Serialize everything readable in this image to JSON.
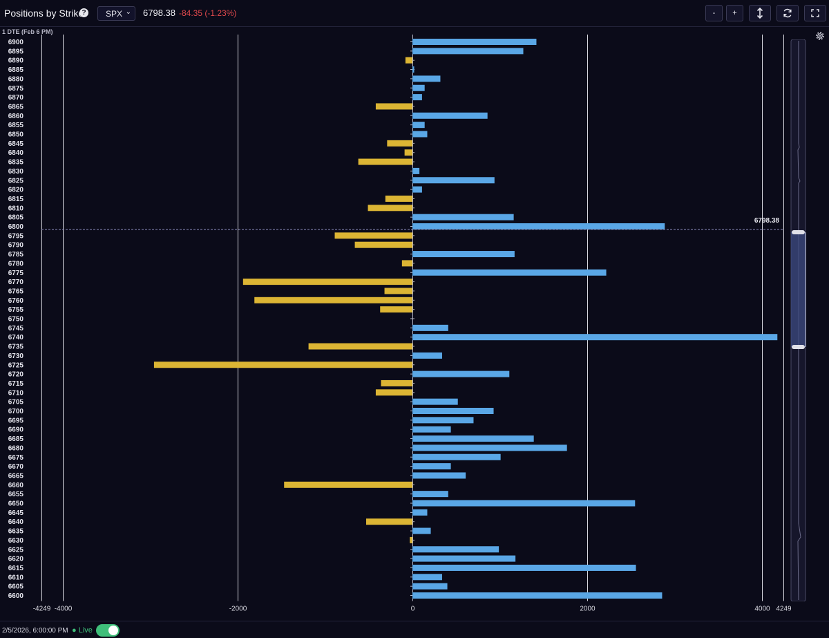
{
  "header": {
    "title": "Positions by Strike",
    "help_icon_text": "?",
    "ticker": "SPX",
    "price": "6798.38",
    "change": "-84.35 (-1.23%)",
    "buttons": {
      "zoom_out": "-",
      "zoom_in": "+"
    }
  },
  "chart_meta": {
    "dte_label": "1 DTE (Feb 6 PM)"
  },
  "chart_data": {
    "type": "bar",
    "orientation": "horizontal",
    "categories": [
      6900,
      6895,
      6890,
      6885,
      6880,
      6875,
      6870,
      6865,
      6860,
      6855,
      6850,
      6845,
      6840,
      6835,
      6830,
      6825,
      6820,
      6815,
      6810,
      6805,
      6800,
      6795,
      6790,
      6785,
      6780,
      6775,
      6770,
      6765,
      6760,
      6755,
      6750,
      6745,
      6740,
      6735,
      6730,
      6725,
      6720,
      6715,
      6710,
      6705,
      6700,
      6695,
      6690,
      6685,
      6680,
      6675,
      6670,
      6665,
      6660,
      6655,
      6650,
      6645,
      6640,
      6635,
      6630,
      6625,
      6620,
      6615,
      6610,
      6605,
      6600
    ],
    "values": [
      1420,
      1270,
      -80,
      20,
      320,
      140,
      110,
      -420,
      860,
      140,
      170,
      -290,
      -90,
      -620,
      80,
      940,
      110,
      -310,
      -510,
      1160,
      2890,
      -890,
      -660,
      1170,
      -120,
      2220,
      -1940,
      -320,
      -1810,
      -370,
      0,
      410,
      4180,
      -1190,
      340,
      -2960,
      1110,
      -360,
      -420,
      520,
      930,
      700,
      440,
      1390,
      1770,
      1010,
      440,
      610,
      -1470,
      410,
      2550,
      170,
      -530,
      210,
      -30,
      990,
      1180,
      2560,
      340,
      400,
      2860
    ],
    "colors": {
      "positive": "#5aa7e6",
      "negative": "#dcb534"
    },
    "xlim": [
      -4249,
      4249
    ],
    "x_ticks": [
      -4249,
      -4000,
      -2000,
      0,
      2000,
      4000,
      4249
    ],
    "x_tick_labels": [
      "-4249",
      "-4000",
      "-2000",
      "0",
      "2000",
      "4000",
      "4249"
    ],
    "current_price": 6798.38,
    "current_price_label": "6798.38"
  },
  "footer": {
    "timestamp": "2/5/2026, 6:00:00 PM",
    "live_label": "● Live",
    "live_on": true
  }
}
